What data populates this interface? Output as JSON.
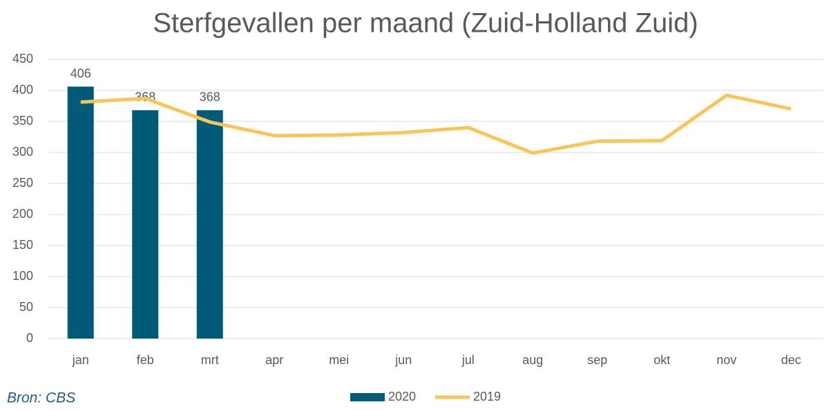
{
  "chart_data": {
    "type": "bar",
    "title": "Sterfgevallen per maand (Zuid-Holland Zuid)",
    "source": "Bron: CBS",
    "categories": [
      "jan",
      "feb",
      "mrt",
      "apr",
      "mei",
      "jun",
      "jul",
      "aug",
      "sep",
      "okt",
      "nov",
      "dec"
    ],
    "series": [
      {
        "name": "2020",
        "type": "bar",
        "color": "#005a78",
        "values": [
          406,
          368,
          368,
          null,
          null,
          null,
          null,
          null,
          null,
          null,
          null,
          null
        ]
      },
      {
        "name": "2019",
        "type": "line",
        "color": "#fbc457",
        "values": [
          381,
          387,
          349,
          327,
          328,
          332,
          340,
          299,
          318,
          319,
          392,
          370
        ]
      }
    ],
    "ylim": [
      0,
      450
    ],
    "yticks": [
      0,
      50,
      100,
      150,
      200,
      250,
      300,
      350,
      400,
      450
    ],
    "grid": true,
    "legend": "bottom"
  }
}
